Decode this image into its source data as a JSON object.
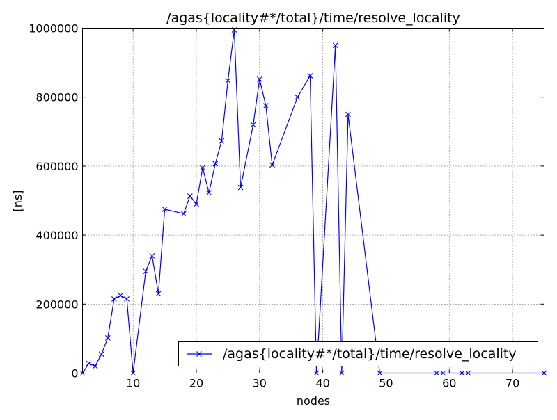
{
  "chart_data": {
    "type": "line",
    "title": "/agas{locality#*/total}/time/resolve_locality",
    "xlabel": "nodes",
    "ylabel": "[ns]",
    "xlim": [
      2,
      75
    ],
    "ylim": [
      0,
      1000000
    ],
    "x_ticks": [
      10,
      20,
      30,
      40,
      50,
      60,
      70
    ],
    "y_ticks": [
      0,
      200000,
      400000,
      600000,
      800000,
      1000000
    ],
    "x_tick_labels": [
      "10",
      "20",
      "30",
      "40",
      "50",
      "60",
      "70"
    ],
    "y_tick_labels": [
      "0",
      "200000",
      "400000",
      "600000",
      "800000",
      "1000000"
    ],
    "grid": true,
    "grid_style": "dotted",
    "legend_position": "lower-right",
    "marker": "x",
    "series": [
      {
        "name": "/agas{locality#*/total}/time/resolve_locality",
        "color": "#0000ff",
        "x": [
          2,
          3,
          4,
          5,
          6,
          7,
          8,
          9,
          10,
          12,
          13,
          14,
          15,
          18,
          19,
          20,
          21,
          22,
          23,
          24,
          25,
          26,
          27,
          29,
          30,
          31,
          32,
          36,
          38,
          39,
          42,
          43,
          44,
          49,
          58,
          59,
          62,
          63,
          75
        ],
        "y": [
          0,
          28000,
          20000,
          55000,
          102000,
          215000,
          225000,
          215000,
          0,
          295000,
          340000,
          230000,
          475000,
          462000,
          513000,
          490000,
          595000,
          523000,
          607000,
          673000,
          848000,
          995000,
          538000,
          720000,
          852000,
          775000,
          603000,
          800000,
          862000,
          0,
          950000,
          0,
          750000,
          0,
          0,
          0,
          0,
          0,
          0
        ]
      }
    ]
  }
}
